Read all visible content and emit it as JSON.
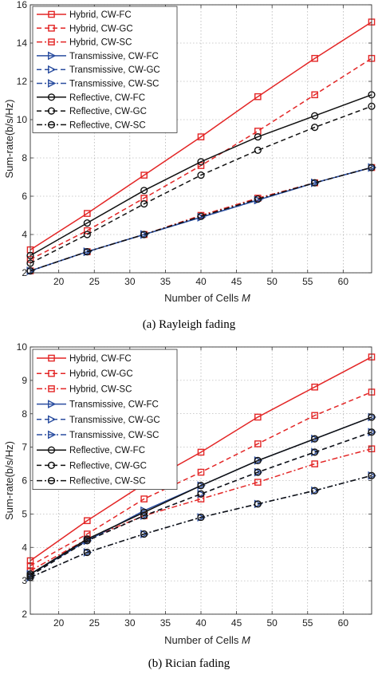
{
  "chart_data": [
    {
      "type": "line",
      "caption": "(a)  Rayleigh fading",
      "xlabel": "Number of Cells",
      "xlabel_var": "M",
      "ylabel": "Sum-rate(b/s/Hz)",
      "xlim": [
        16,
        64
      ],
      "ylim": [
        2,
        16
      ],
      "xticks": [
        20,
        25,
        30,
        35,
        40,
        45,
        50,
        55,
        60
      ],
      "yticks": [
        2,
        4,
        6,
        8,
        10,
        12,
        14,
        16
      ],
      "grid": true,
      "legend_position": "top-left",
      "x": [
        16,
        24,
        32,
        40,
        48,
        56,
        64
      ],
      "series": [
        {
          "name": "Hybrid, CW-FC",
          "values": [
            3.2,
            5.1,
            7.1,
            9.1,
            11.2,
            13.2,
            15.1
          ],
          "color": "#e32626",
          "dash": "solid",
          "marker": "square"
        },
        {
          "name": "Hybrid, CW-GC",
          "values": [
            2.7,
            4.2,
            5.9,
            7.6,
            9.4,
            11.3,
            13.2
          ],
          "color": "#e32626",
          "dash": "dashed",
          "marker": "square"
        },
        {
          "name": "Hybrid, CW-SC",
          "values": [
            2.1,
            3.1,
            4.0,
            5.0,
            5.9,
            6.7,
            7.5
          ],
          "color": "#e32626",
          "dash": "dashdot",
          "marker": "square"
        },
        {
          "name": "Transmissive, CW-FC",
          "values": [
            2.1,
            3.1,
            4.0,
            4.9,
            5.8,
            6.7,
            7.5
          ],
          "color": "#2b4ea0",
          "dash": "solid",
          "marker": "triangle"
        },
        {
          "name": "Transmissive, CW-GC",
          "values": [
            2.1,
            3.1,
            4.0,
            4.9,
            5.8,
            6.7,
            7.5
          ],
          "color": "#2b4ea0",
          "dash": "dashed",
          "marker": "triangle"
        },
        {
          "name": "Transmissive, CW-SC",
          "values": [
            2.1,
            3.1,
            4.0,
            4.9,
            5.8,
            6.7,
            7.5
          ],
          "color": "#2b4ea0",
          "dash": "dashdot",
          "marker": "triangle"
        },
        {
          "name": "Reflective, CW-FC",
          "values": [
            2.9,
            4.6,
            6.3,
            7.8,
            9.1,
            10.2,
            11.3
          ],
          "color": "#111111",
          "dash": "solid",
          "marker": "circle"
        },
        {
          "name": "Reflective, CW-GC",
          "values": [
            2.5,
            4.0,
            5.6,
            7.1,
            8.4,
            9.6,
            10.7
          ],
          "color": "#111111",
          "dash": "dashed",
          "marker": "circle"
        },
        {
          "name": "Reflective, CW-SC",
          "values": [
            2.1,
            3.1,
            4.0,
            4.95,
            5.85,
            6.7,
            7.5
          ],
          "color": "#111111",
          "dash": "dashdot",
          "marker": "circle"
        }
      ]
    },
    {
      "type": "line",
      "caption": "(b)  Rician fading",
      "xlabel": "Number of Cells",
      "xlabel_var": "M",
      "ylabel": "Sum-rate(b/s/Hz)",
      "xlim": [
        16,
        64
      ],
      "ylim": [
        2,
        10
      ],
      "xticks": [
        20,
        25,
        30,
        35,
        40,
        45,
        50,
        55,
        60
      ],
      "yticks": [
        2,
        3,
        4,
        5,
        6,
        7,
        8,
        9,
        10
      ],
      "grid": true,
      "legend_position": "top-left",
      "x": [
        16,
        24,
        32,
        40,
        48,
        56,
        64
      ],
      "series": [
        {
          "name": "Hybrid, CW-FC",
          "values": [
            3.6,
            4.8,
            5.9,
            6.85,
            7.9,
            8.8,
            9.7
          ],
          "color": "#e32626",
          "dash": "solid",
          "marker": "square"
        },
        {
          "name": "Hybrid, CW-GC",
          "values": [
            3.45,
            4.4,
            5.45,
            6.25,
            7.1,
            7.95,
            8.65
          ],
          "color": "#e32626",
          "dash": "dashed",
          "marker": "square"
        },
        {
          "name": "Hybrid, CW-SC",
          "values": [
            3.3,
            4.25,
            4.95,
            5.45,
            5.95,
            6.5,
            6.95
          ],
          "color": "#e32626",
          "dash": "dashdot",
          "marker": "square"
        },
        {
          "name": "Transmissive, CW-FC",
          "values": [
            3.2,
            4.2,
            5.1,
            5.85,
            6.6,
            7.25,
            7.9
          ],
          "color": "#2b4ea0",
          "dash": "solid",
          "marker": "triangle"
        },
        {
          "name": "Transmissive, CW-GC",
          "values": [
            3.15,
            4.2,
            4.95,
            5.6,
            6.25,
            6.85,
            7.45
          ],
          "color": "#2b4ea0",
          "dash": "dashed",
          "marker": "triangle"
        },
        {
          "name": "Transmissive, CW-SC",
          "values": [
            3.1,
            3.85,
            4.4,
            4.9,
            5.3,
            5.7,
            6.15
          ],
          "color": "#2b4ea0",
          "dash": "dashdot",
          "marker": "triangle"
        },
        {
          "name": "Reflective, CW-FC",
          "values": [
            3.2,
            4.25,
            5.05,
            5.85,
            6.6,
            7.25,
            7.9
          ],
          "color": "#111111",
          "dash": "solid",
          "marker": "circle"
        },
        {
          "name": "Reflective, CW-GC",
          "values": [
            3.15,
            4.2,
            4.95,
            5.6,
            6.25,
            6.85,
            7.45
          ],
          "color": "#111111",
          "dash": "dashed",
          "marker": "circle"
        },
        {
          "name": "Reflective, CW-SC",
          "values": [
            3.1,
            3.85,
            4.4,
            4.9,
            5.3,
            5.7,
            6.15
          ],
          "color": "#111111",
          "dash": "dashdot",
          "marker": "circle"
        }
      ]
    }
  ]
}
